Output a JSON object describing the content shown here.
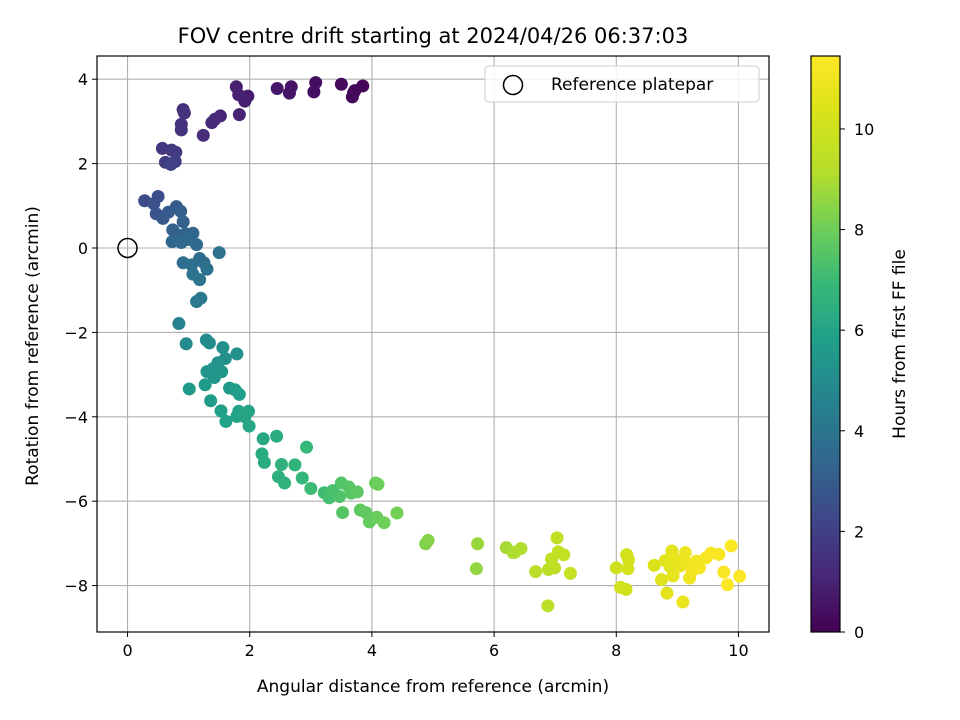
{
  "chart_data": {
    "type": "scatter",
    "title": "FOV centre drift starting at 2024/04/26 06:37:03",
    "xlabel": "Angular distance from reference (arcmin)",
    "ylabel": "Rotation from reference (arcmin)",
    "xlim": [
      -0.5,
      10.5
    ],
    "ylim": [
      -9.1,
      4.55
    ],
    "xticks": [
      0,
      2,
      4,
      6,
      8,
      10
    ],
    "yticks": [
      -8,
      -6,
      -4,
      -2,
      0,
      2,
      4
    ],
    "grid": true,
    "colormap": "viridis",
    "colorbar": {
      "label": "Hours from first FF file",
      "range": [
        0,
        11.45
      ],
      "ticks": [
        0,
        2,
        4,
        6,
        8,
        10
      ]
    },
    "legend": {
      "position": "top-right",
      "entries": [
        {
          "label": "Reference platepar",
          "marker": "open-circle",
          "x": 0,
          "y": 0
        }
      ]
    },
    "points": [
      [
        3.85,
        3.84,
        0.1
      ],
      [
        3.72,
        3.73,
        0.15
      ],
      [
        3.68,
        3.58,
        0.2
      ],
      [
        3.7,
        3.68,
        0.25
      ],
      [
        3.5,
        3.88,
        0.3
      ],
      [
        3.08,
        3.92,
        0.4
      ],
      [
        3.05,
        3.7,
        0.45
      ],
      [
        2.68,
        3.82,
        0.55
      ],
      [
        2.65,
        3.67,
        0.6
      ],
      [
        2.45,
        3.78,
        0.65
      ],
      [
        1.97,
        3.6,
        0.8
      ],
      [
        1.92,
        3.48,
        0.85
      ],
      [
        1.78,
        3.82,
        0.9
      ],
      [
        1.82,
        3.63,
        0.95
      ],
      [
        1.83,
        3.16,
        1.0
      ],
      [
        1.52,
        3.13,
        1.1
      ],
      [
        1.38,
        2.97,
        1.2
      ],
      [
        1.43,
        3.05,
        1.25
      ],
      [
        1.24,
        2.67,
        1.3
      ],
      [
        0.91,
        3.28,
        1.4
      ],
      [
        0.88,
        2.93,
        1.45
      ],
      [
        0.88,
        2.8,
        1.5
      ],
      [
        0.93,
        3.2,
        1.55
      ],
      [
        0.57,
        2.36,
        1.65
      ],
      [
        0.72,
        2.32,
        1.75
      ],
      [
        0.79,
        2.27,
        1.8
      ],
      [
        0.62,
        2.03,
        1.85
      ],
      [
        0.78,
        2.05,
        1.95
      ],
      [
        0.71,
        1.98,
        2.0
      ],
      [
        0.28,
        1.12,
        2.4
      ],
      [
        0.5,
        1.22,
        2.5
      ],
      [
        0.43,
        1.05,
        2.6
      ],
      [
        0.47,
        0.81,
        2.7
      ],
      [
        0.58,
        0.7,
        2.8
      ],
      [
        0.67,
        0.85,
        2.9
      ],
      [
        0.8,
        0.98,
        3.0
      ],
      [
        0.87,
        0.87,
        3.05
      ],
      [
        0.91,
        0.62,
        3.1
      ],
      [
        0.74,
        0.43,
        3.2
      ],
      [
        0.82,
        0.31,
        3.25
      ],
      [
        0.95,
        0.34,
        3.3
      ],
      [
        1.07,
        0.35,
        3.35
      ],
      [
        0.73,
        0.15,
        3.4
      ],
      [
        0.88,
        0.13,
        3.45
      ],
      [
        1.01,
        0.2,
        3.5
      ],
      [
        1.13,
        0.08,
        3.55
      ],
      [
        1.18,
        -0.25,
        3.6
      ],
      [
        1.25,
        -0.35,
        3.65
      ],
      [
        0.91,
        -0.35,
        3.7
      ],
      [
        1.05,
        -0.4,
        3.75
      ],
      [
        1.3,
        -0.5,
        3.8
      ],
      [
        1.5,
        -0.11,
        3.85
      ],
      [
        1.07,
        -0.62,
        3.9
      ],
      [
        1.18,
        -0.75,
        3.95
      ],
      [
        1.13,
        -1.27,
        4.1
      ],
      [
        1.2,
        -1.19,
        4.2
      ],
      [
        0.84,
        -1.79,
        4.6
      ],
      [
        0.96,
        -2.27,
        4.9
      ],
      [
        1.29,
        -2.18,
        5.0
      ],
      [
        1.34,
        -2.25,
        5.05
      ],
      [
        1.56,
        -2.36,
        5.1
      ],
      [
        1.6,
        -2.62,
        5.15
      ],
      [
        1.79,
        -2.51,
        5.2
      ],
      [
        1.48,
        -2.72,
        5.25
      ],
      [
        1.4,
        -2.86,
        5.3
      ],
      [
        1.3,
        -2.93,
        5.35
      ],
      [
        1.42,
        -3.07,
        5.4
      ],
      [
        1.54,
        -2.93,
        5.45
      ],
      [
        1.67,
        -3.32,
        5.5
      ],
      [
        1.27,
        -3.24,
        5.55
      ],
      [
        1.01,
        -3.34,
        5.6
      ],
      [
        1.36,
        -3.62,
        5.65
      ],
      [
        1.76,
        -3.36,
        5.7
      ],
      [
        1.83,
        -3.47,
        5.75
      ],
      [
        1.53,
        -3.86,
        5.8
      ],
      [
        1.61,
        -4.11,
        5.85
      ],
      [
        1.79,
        -3.99,
        5.9
      ],
      [
        1.82,
        -3.87,
        5.95
      ],
      [
        1.98,
        -3.87,
        6.0
      ],
      [
        1.92,
        -4.0,
        6.05
      ],
      [
        1.99,
        -4.22,
        6.1
      ],
      [
        2.22,
        -4.52,
        6.2
      ],
      [
        2.2,
        -4.88,
        6.3
      ],
      [
        2.24,
        -5.08,
        6.35
      ],
      [
        2.44,
        -4.46,
        6.4
      ],
      [
        2.47,
        -5.42,
        6.5
      ],
      [
        2.52,
        -5.13,
        6.55
      ],
      [
        2.57,
        -5.57,
        6.6
      ],
      [
        2.74,
        -5.14,
        6.7
      ],
      [
        2.86,
        -5.45,
        6.8
      ],
      [
        2.93,
        -4.72,
        6.9
      ],
      [
        3.0,
        -5.7,
        7.0
      ],
      [
        3.22,
        -5.8,
        7.1
      ],
      [
        3.3,
        -5.92,
        7.2
      ],
      [
        3.36,
        -5.75,
        7.3
      ],
      [
        3.47,
        -5.89,
        7.4
      ],
      [
        3.5,
        -5.57,
        7.45
      ],
      [
        3.52,
        -6.27,
        7.5
      ],
      [
        3.62,
        -5.66,
        7.55
      ],
      [
        3.66,
        -5.81,
        7.6
      ],
      [
        3.76,
        -5.78,
        7.65
      ],
      [
        3.81,
        -6.21,
        7.7
      ],
      [
        3.9,
        -6.27,
        7.75
      ],
      [
        3.96,
        -6.49,
        7.8
      ],
      [
        4.06,
        -5.57,
        7.85
      ],
      [
        4.08,
        -6.38,
        7.9
      ],
      [
        4.1,
        -5.6,
        7.95
      ],
      [
        4.2,
        -6.51,
        8.0
      ],
      [
        4.41,
        -6.28,
        8.1
      ],
      [
        4.88,
        -7.01,
        8.3
      ],
      [
        4.92,
        -6.93,
        8.4
      ],
      [
        5.71,
        -7.6,
        8.6
      ],
      [
        5.73,
        -7.01,
        8.7
      ],
      [
        6.2,
        -7.1,
        8.9
      ],
      [
        6.31,
        -7.22,
        9.0
      ],
      [
        6.34,
        -7.21,
        9.05
      ],
      [
        6.44,
        -7.12,
        9.1
      ],
      [
        6.68,
        -7.67,
        9.3
      ],
      [
        6.89,
        -7.62,
        9.35
      ],
      [
        6.88,
        -8.48,
        9.4
      ],
      [
        6.94,
        -7.37,
        9.45
      ],
      [
        6.99,
        -7.58,
        9.5
      ],
      [
        7.03,
        -6.87,
        9.55
      ],
      [
        7.05,
        -7.2,
        9.6
      ],
      [
        7.14,
        -7.27,
        9.65
      ],
      [
        7.25,
        -7.71,
        9.7
      ],
      [
        8.0,
        -7.58,
        10.0
      ],
      [
        8.07,
        -8.04,
        10.05
      ],
      [
        8.16,
        -8.09,
        10.1
      ],
      [
        8.17,
        -7.27,
        10.15
      ],
      [
        8.2,
        -7.39,
        10.2
      ],
      [
        8.19,
        -7.6,
        10.25
      ],
      [
        8.62,
        -7.52,
        10.4
      ],
      [
        8.74,
        -7.86,
        10.5
      ],
      [
        8.8,
        -7.41,
        10.55
      ],
      [
        8.83,
        -8.18,
        10.6
      ],
      [
        8.88,
        -7.55,
        10.65
      ],
      [
        8.91,
        -7.18,
        10.7
      ],
      [
        8.93,
        -7.77,
        10.75
      ],
      [
        8.97,
        -7.4,
        10.8
      ],
      [
        9.04,
        -7.54,
        10.85
      ],
      [
        9.09,
        -8.39,
        10.9
      ],
      [
        9.13,
        -7.22,
        10.95
      ],
      [
        9.15,
        -7.47,
        11.0
      ],
      [
        9.2,
        -7.82,
        11.05
      ],
      [
        9.24,
        -7.65,
        11.1
      ],
      [
        9.31,
        -7.42,
        11.15
      ],
      [
        9.36,
        -7.58,
        11.2
      ],
      [
        9.47,
        -7.34,
        11.25
      ],
      [
        9.55,
        -7.23,
        11.28
      ],
      [
        9.68,
        -7.26,
        11.3
      ],
      [
        9.76,
        -7.68,
        11.33
      ],
      [
        9.82,
        -7.98,
        11.36
      ],
      [
        9.88,
        -7.06,
        11.4
      ],
      [
        10.02,
        -7.78,
        11.43
      ]
    ]
  }
}
